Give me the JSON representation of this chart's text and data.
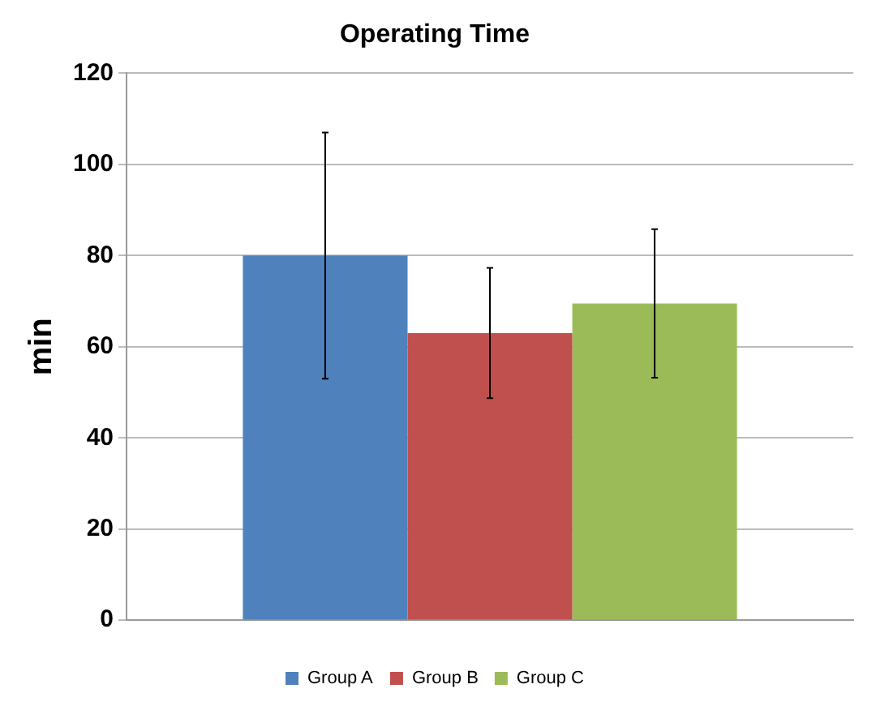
{
  "chart_data": {
    "type": "bar",
    "title": "Operating Time",
    "ylabel": "min",
    "categories": [
      null
    ],
    "series": [
      {
        "name": "Group A",
        "color": "#4f81bd",
        "values": [
          80
        ],
        "errors": [
          27
        ]
      },
      {
        "name": "Group B",
        "color": "#c0504d",
        "values": [
          63
        ],
        "errors": [
          14.3
        ]
      },
      {
        "name": "Group C",
        "color": "#9bbb59",
        "values": [
          69.5
        ],
        "errors": [
          16.3
        ]
      }
    ],
    "ylim": [
      0,
      120
    ],
    "yticks": [
      0,
      20,
      40,
      60,
      80,
      100,
      120
    ],
    "grid": "y",
    "legend": "bottom"
  }
}
